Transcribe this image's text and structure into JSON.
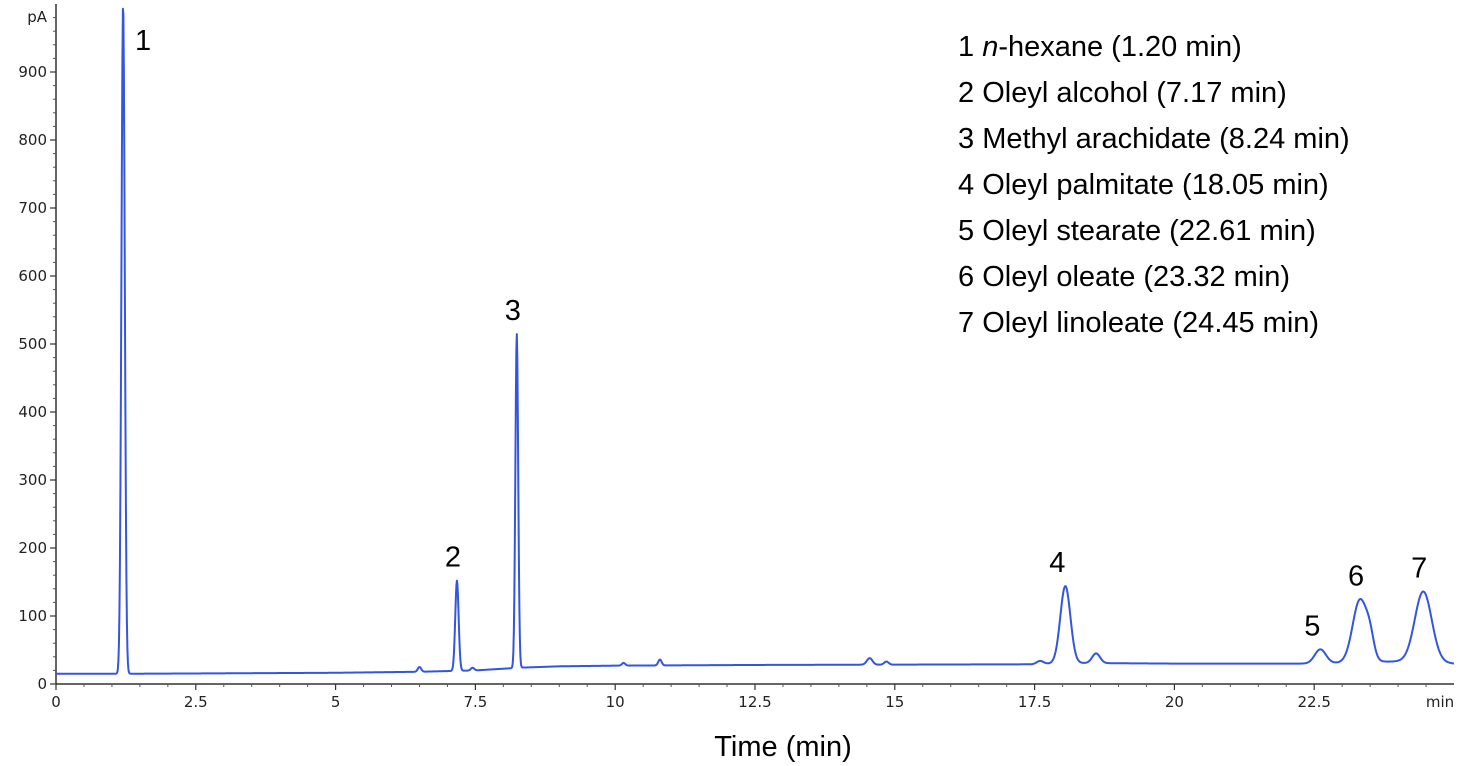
{
  "chart_data": {
    "type": "line",
    "xlabel": "Time (min)",
    "x_unit_label": "min",
    "y_unit_label": "pA",
    "xlim": [
      0,
      25
    ],
    "ylim": [
      0,
      1000
    ],
    "x_ticks": [
      0,
      2.5,
      5,
      7.5,
      10,
      12.5,
      15,
      17.5,
      20,
      22.5
    ],
    "x_tick_labels": [
      "0",
      "2.5",
      "5",
      "7.5",
      "10",
      "12.5",
      "15",
      "17.5",
      "20",
      "22.5"
    ],
    "y_ticks": [
      0,
      100,
      200,
      300,
      400,
      500,
      600,
      700,
      800,
      900
    ],
    "y_tick_labels": [
      "0",
      "100",
      "200",
      "300",
      "400",
      "500",
      "600",
      "700",
      "800",
      "900"
    ],
    "line_color": "#3355e0",
    "baseline": [
      {
        "x": 0,
        "y": 15
      },
      {
        "x": 1.1,
        "y": 15
      },
      {
        "x": 2.5,
        "y": 15.5
      },
      {
        "x": 5,
        "y": 16.5
      },
      {
        "x": 6.5,
        "y": 18
      },
      {
        "x": 7.5,
        "y": 20
      },
      {
        "x": 8.3,
        "y": 24
      },
      {
        "x": 9,
        "y": 26
      },
      {
        "x": 10,
        "y": 27
      },
      {
        "x": 12.5,
        "y": 28
      },
      {
        "x": 15,
        "y": 28.5
      },
      {
        "x": 17.5,
        "y": 29
      },
      {
        "x": 18.05,
        "y": 31
      },
      {
        "x": 20,
        "y": 30
      },
      {
        "x": 22.5,
        "y": 30
      },
      {
        "x": 23.3,
        "y": 32
      },
      {
        "x": 24.45,
        "y": 34
      },
      {
        "x": 25,
        "y": 30
      }
    ],
    "peaks": [
      {
        "label": "1",
        "x": 1.2,
        "y": 1000,
        "width": 0.03
      },
      {
        "label": "",
        "x": 6.5,
        "y": 25,
        "width": 0.03
      },
      {
        "label": "2",
        "x": 7.17,
        "y": 152,
        "width": 0.03
      },
      {
        "label": "",
        "x": 7.45,
        "y": 24,
        "width": 0.03
      },
      {
        "label": "3",
        "x": 8.24,
        "y": 515,
        "width": 0.025
      },
      {
        "label": "",
        "x": 10.15,
        "y": 31,
        "width": 0.03
      },
      {
        "label": "",
        "x": 10.8,
        "y": 36,
        "width": 0.03
      },
      {
        "label": "",
        "x": 14.55,
        "y": 38,
        "width": 0.05
      },
      {
        "label": "",
        "x": 14.85,
        "y": 33,
        "width": 0.04
      },
      {
        "label": "",
        "x": 17.6,
        "y": 34,
        "width": 0.06
      },
      {
        "label": "4",
        "x": 18.05,
        "y": 144,
        "width": 0.09
      },
      {
        "label": "",
        "x": 18.6,
        "y": 45,
        "width": 0.07
      },
      {
        "label": "5",
        "x": 22.61,
        "y": 51,
        "width": 0.1
      },
      {
        "label": "6",
        "x": 23.32,
        "y": 124,
        "width": 0.13
      },
      {
        "label": "",
        "x": 23.5,
        "y": 56,
        "width": 0.07
      },
      {
        "label": "7",
        "x": 24.45,
        "y": 136,
        "width": 0.15
      }
    ],
    "peak_labels": [
      {
        "text": "1",
        "x": 1.2
      },
      {
        "text": "2",
        "x": 7.17
      },
      {
        "text": "3",
        "x": 8.24
      },
      {
        "text": "4",
        "x": 18.05
      },
      {
        "text": "5",
        "x": 22.61
      },
      {
        "text": "6",
        "x": 23.32
      },
      {
        "text": "7",
        "x": 24.45
      }
    ],
    "legend": [
      {
        "num": "1",
        "italic": "n",
        "name": "-hexane (1.20 min)"
      },
      {
        "num": "2",
        "italic": "",
        "name": "Oleyl alcohol (7.17 min)"
      },
      {
        "num": "3",
        "italic": "",
        "name": "Methyl arachidate (8.24 min)"
      },
      {
        "num": "4",
        "italic": "",
        "name": "Oleyl palmitate (18.05 min)"
      },
      {
        "num": "5",
        "italic": "",
        "name": "Oleyl stearate (22.61 min)"
      },
      {
        "num": "6",
        "italic": "",
        "name": "Oleyl oleate (23.32 min)"
      },
      {
        "num": "7",
        "italic": "",
        "name": "Oleyl linoleate (24.45 min)"
      }
    ]
  }
}
